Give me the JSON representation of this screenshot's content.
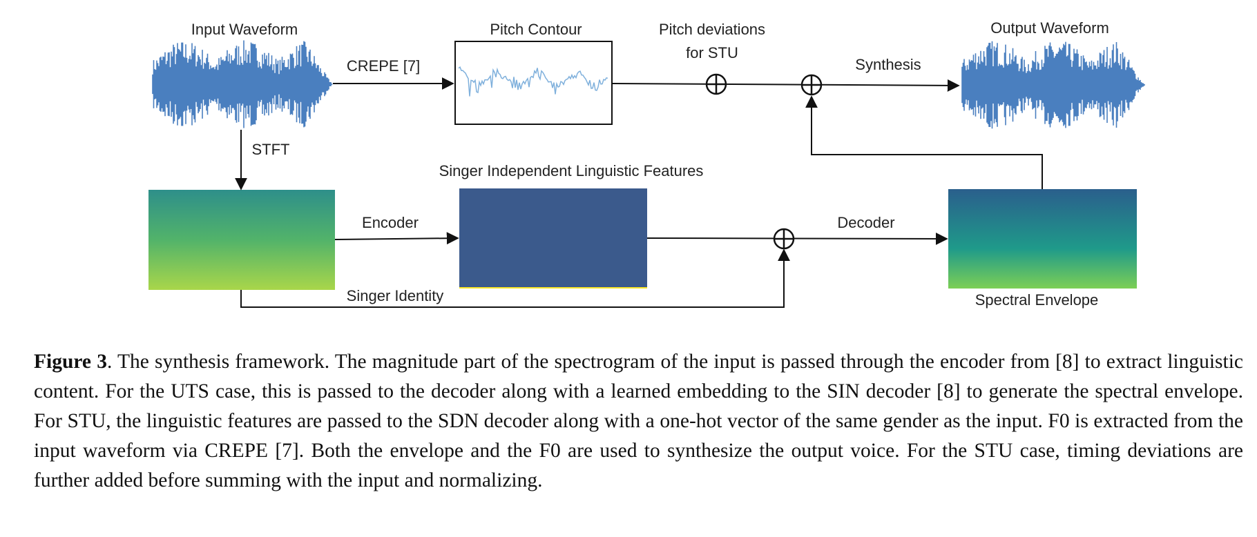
{
  "figure": {
    "labels": {
      "input_waveform": "Input Waveform",
      "pitch_contour": "Pitch Contour",
      "pitch_deviations_line1": "Pitch deviations",
      "pitch_deviations_line2": "for STU",
      "output_waveform": "Output Waveform",
      "crepe": "CREPE [7]",
      "synthesis": "Synthesis",
      "stft": "STFT",
      "linguistic_features": "Singer Independent Linguistic Features",
      "encoder": "Encoder",
      "decoder": "Decoder",
      "singer_identity": "Singer Identity",
      "spectral_envelope": "Spectral Envelope"
    }
  },
  "caption": {
    "label": "Figure 3",
    "text": ". The synthesis framework. The magnitude part of the spectrogram of the input is passed through the encoder from [8] to extract linguistic content. For the UTS case, this is passed to the decoder along with a learned embedding to the SIN decoder [8] to generate the spectral envelope. For STU, the linguistic features are passed to the SDN decoder along with a one-hot vector of the same gender as the input. F0 is extracted from the input waveform via CREPE [7]. Both the envelope and the F0 are used to synthesize the output voice. For the STU case, timing deviations are further added before summing with the input and normalizing."
  }
}
